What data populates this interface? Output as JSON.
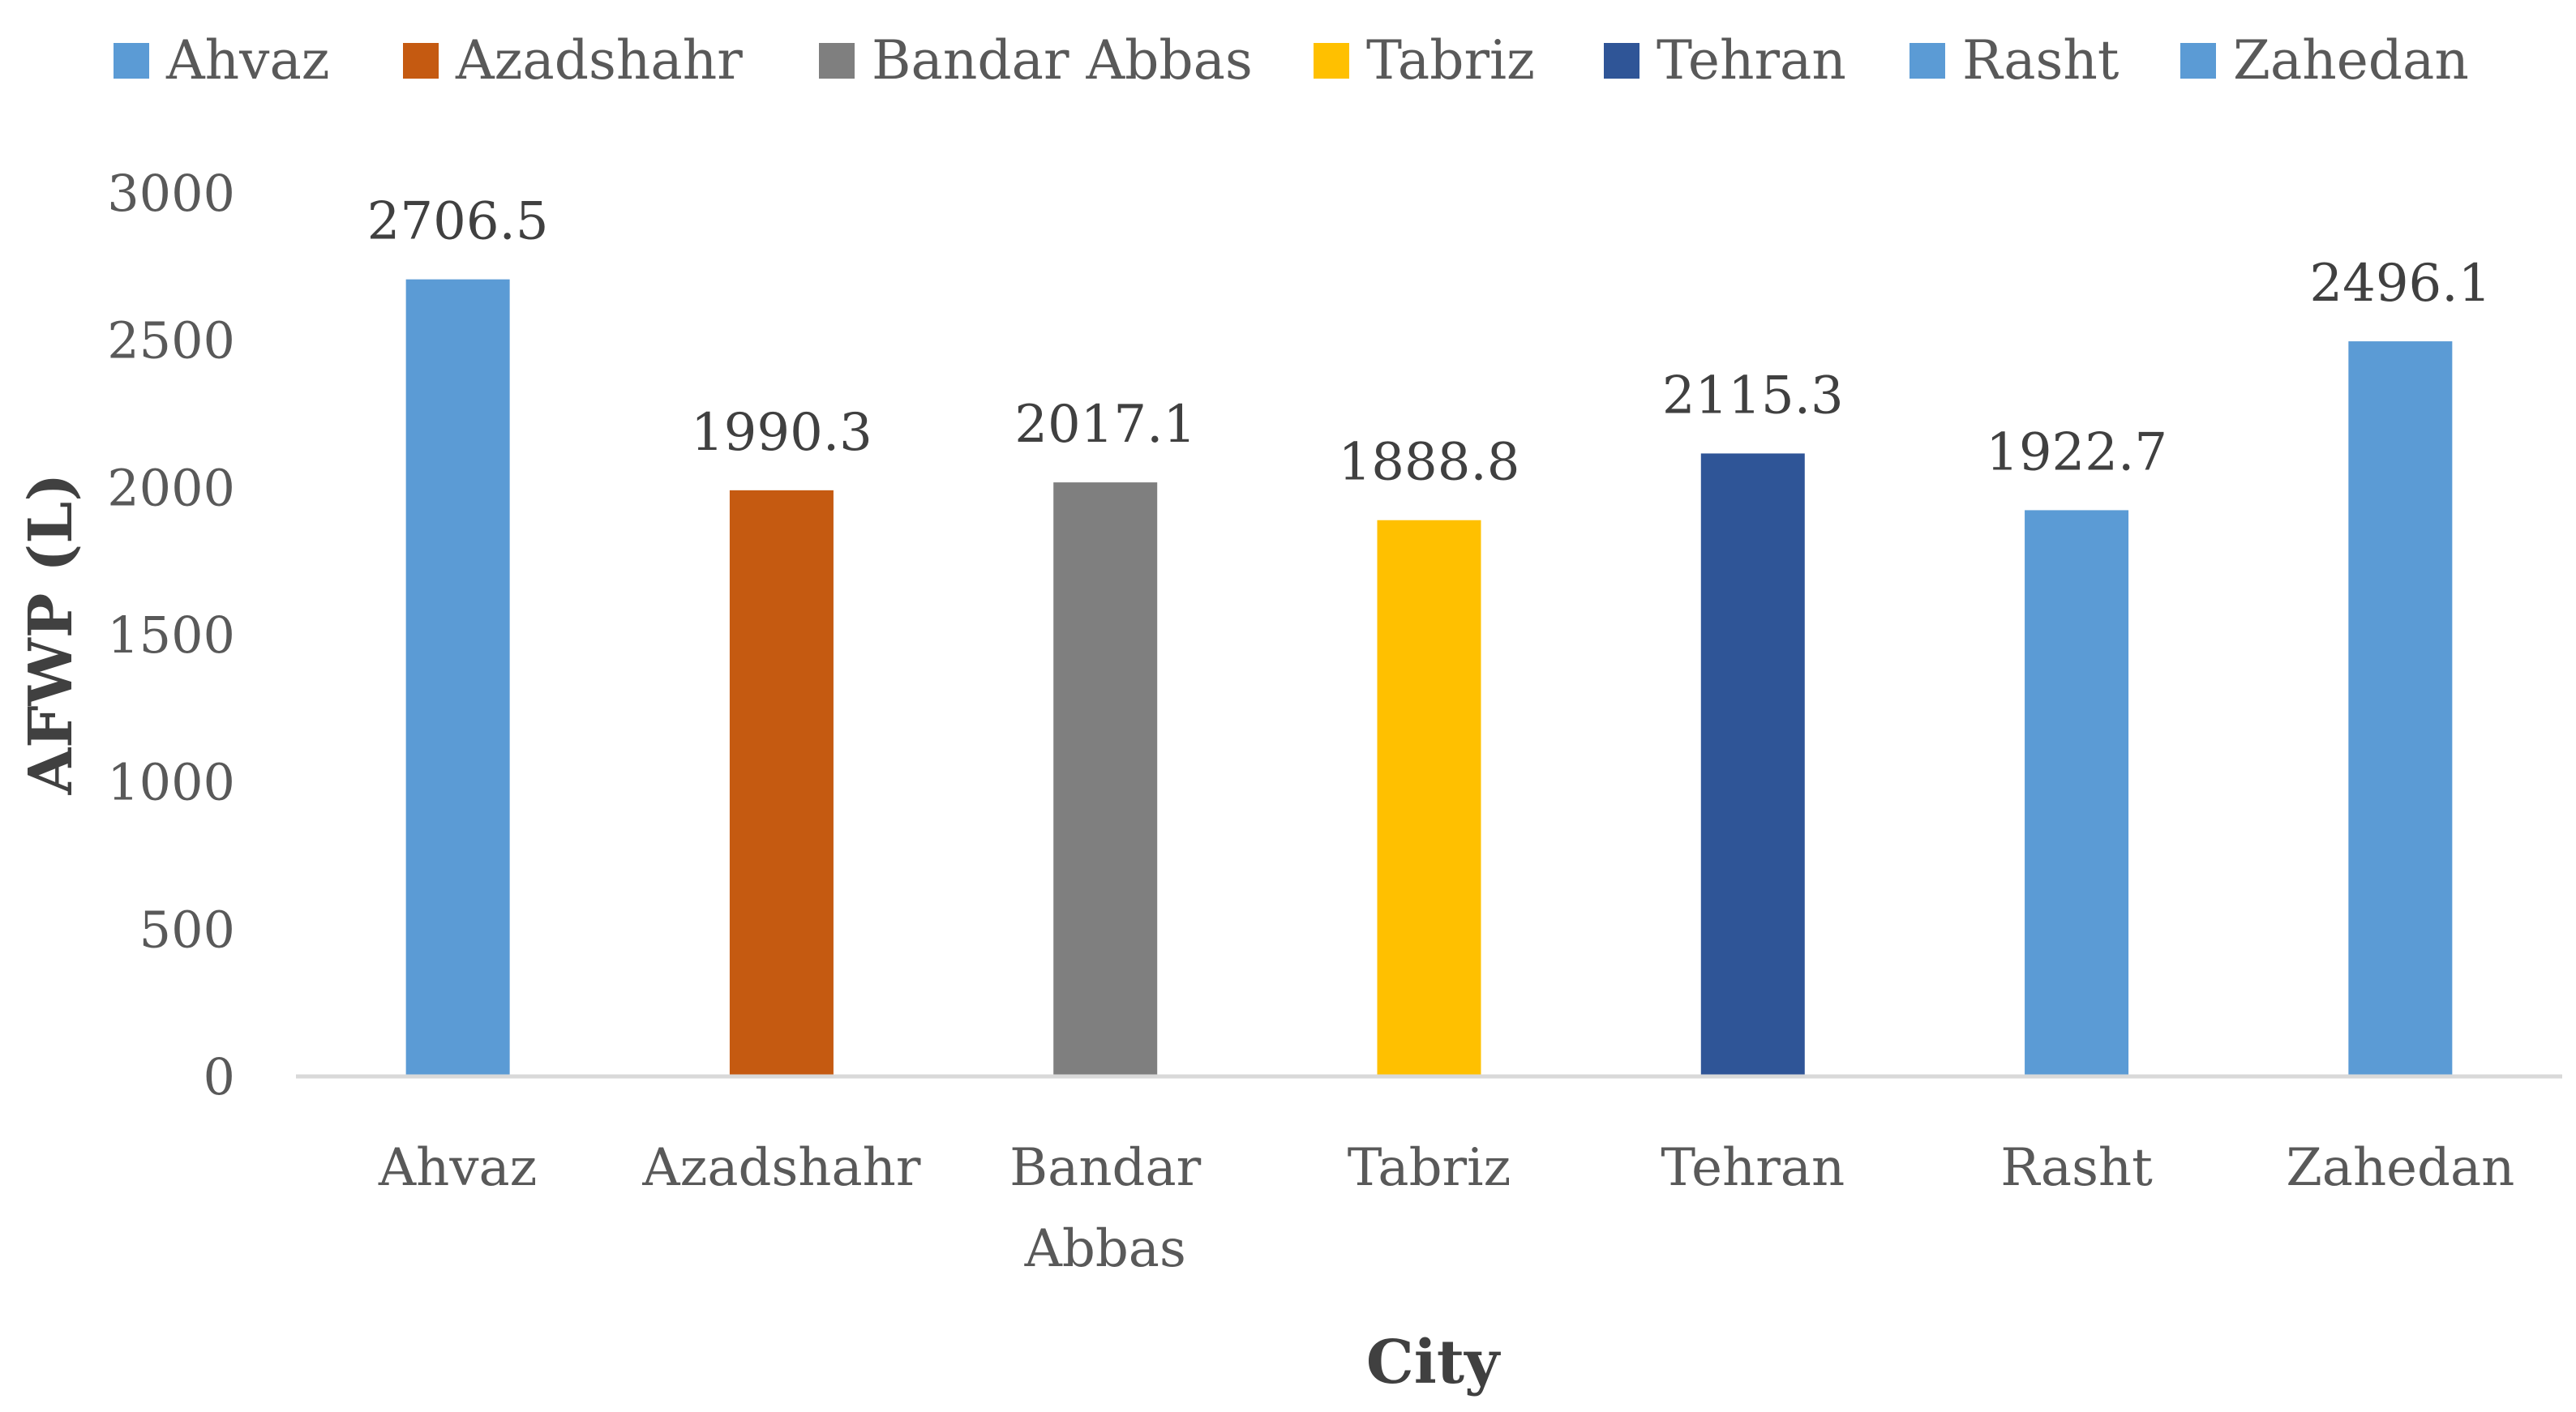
{
  "chart_data": {
    "type": "bar",
    "categories": [
      "Ahvaz",
      "Azadshahr",
      "Bandar Abbas",
      "Tabriz",
      "Tehran",
      "Rasht",
      "Zahedan"
    ],
    "category_lines": [
      [
        "Ahvaz"
      ],
      [
        "Azadshahr"
      ],
      [
        "Bandar",
        "Abbas"
      ],
      [
        "Tabriz"
      ],
      [
        "Tehran"
      ],
      [
        "Rasht"
      ],
      [
        "Zahedan"
      ]
    ],
    "values": [
      2706.5,
      1990.3,
      2017.1,
      1888.8,
      2115.3,
      1922.7,
      2496.1
    ],
    "value_labels": [
      "2706.5",
      "1990.3",
      "2017.1",
      "1888.8",
      "2115.3",
      "1922.7",
      "2496.1"
    ],
    "colors": [
      "#5B9BD5",
      "#C55A11",
      "#7F7F7F",
      "#FFC000",
      "#2F5597",
      "#5B9BD5",
      "#5B9BD5"
    ],
    "legend": [
      "Ahvaz",
      "Azadshahr",
      "Bandar Abbas",
      "Tabriz",
      "Tehran",
      "Rasht",
      "Zahedan"
    ],
    "legend_position": "top",
    "xlabel": "City",
    "ylabel": "AFWP (L)",
    "ylim": [
      0,
      3000
    ],
    "yticks": [
      "0",
      "500",
      "1000",
      "1500",
      "2000",
      "2500",
      "3000"
    ],
    "grid": false
  }
}
